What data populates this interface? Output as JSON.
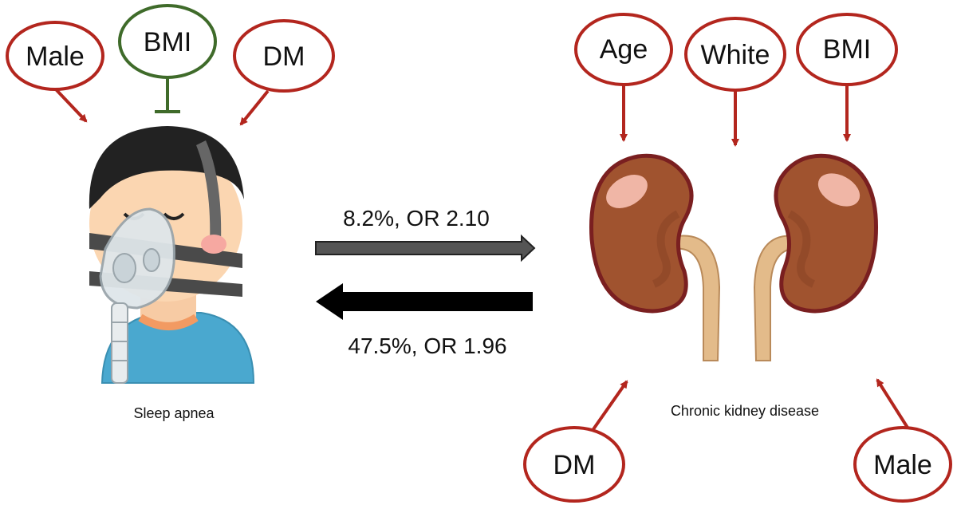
{
  "colors": {
    "risk": "#b3261e",
    "protective": "#3f6b2a",
    "arrow_forward": "#555555",
    "arrow_backward": "#000000"
  },
  "sleep_apnea": {
    "caption": "Sleep apnea",
    "factors": [
      {
        "label": "Male",
        "effect": "increase"
      },
      {
        "label": "BMI",
        "effect": "decrease"
      },
      {
        "label": "DM",
        "effect": "increase"
      }
    ]
  },
  "ckd": {
    "caption": "Chronic kidney disease",
    "factors_top": [
      {
        "label": "Age",
        "effect": "increase"
      },
      {
        "label": "White",
        "effect": "increase"
      },
      {
        "label": "BMI",
        "effect": "increase"
      }
    ],
    "factors_bottom": [
      {
        "label": "DM",
        "effect": "increase"
      },
      {
        "label": "Male",
        "effect": "increase"
      }
    ]
  },
  "relations": {
    "sa_to_ckd": "8.2%, OR 2.10",
    "ckd_to_sa": "47.5%, OR 1.96"
  }
}
